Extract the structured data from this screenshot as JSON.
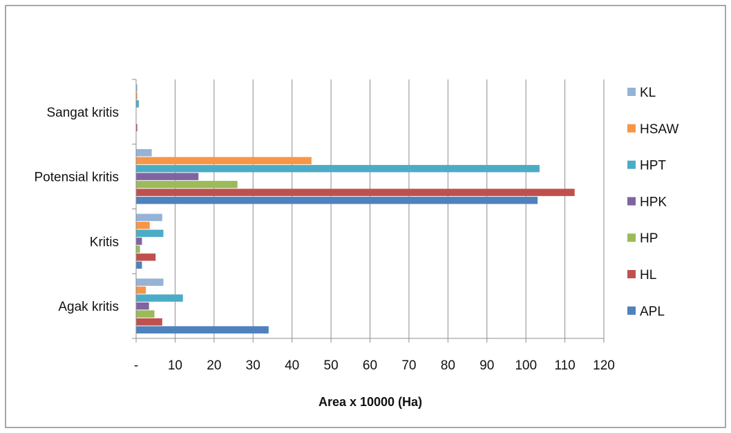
{
  "chart_data": {
    "type": "bar",
    "orientation": "horizontal",
    "categories": [
      "Sangat kritis",
      "Potensial kritis",
      "Kritis",
      "Agak kritis"
    ],
    "series": [
      {
        "name": "KL",
        "color": "#95b3d7",
        "values": [
          0.3,
          4,
          6.7,
          7
        ]
      },
      {
        "name": "HSAW",
        "color": "#f79646",
        "values": [
          0.3,
          45,
          3.5,
          2.5
        ]
      },
      {
        "name": "HPT",
        "color": "#4bacc6",
        "values": [
          0.7,
          103.5,
          7,
          12
        ]
      },
      {
        "name": "HPK",
        "color": "#8064a2",
        "values": [
          0,
          16,
          1.5,
          3.3
        ]
      },
      {
        "name": "HP",
        "color": "#9bbb59",
        "values": [
          0,
          26,
          1,
          4.7
        ]
      },
      {
        "name": "HL",
        "color": "#c0504d",
        "values": [
          0.3,
          112.5,
          5,
          6.7
        ]
      },
      {
        "name": "APL",
        "color": "#4f81bd",
        "values": [
          0,
          103,
          1.5,
          34
        ]
      }
    ],
    "x_ticks": [
      "-",
      "10",
      "20",
      "30",
      "40",
      "50",
      "60",
      "70",
      "80",
      "90",
      "100",
      "110",
      "120"
    ],
    "xlim": [
      0,
      120
    ],
    "xlabel": "Area x 10000 (Ha)",
    "title": "",
    "grid": "vertical",
    "legend": "right"
  }
}
